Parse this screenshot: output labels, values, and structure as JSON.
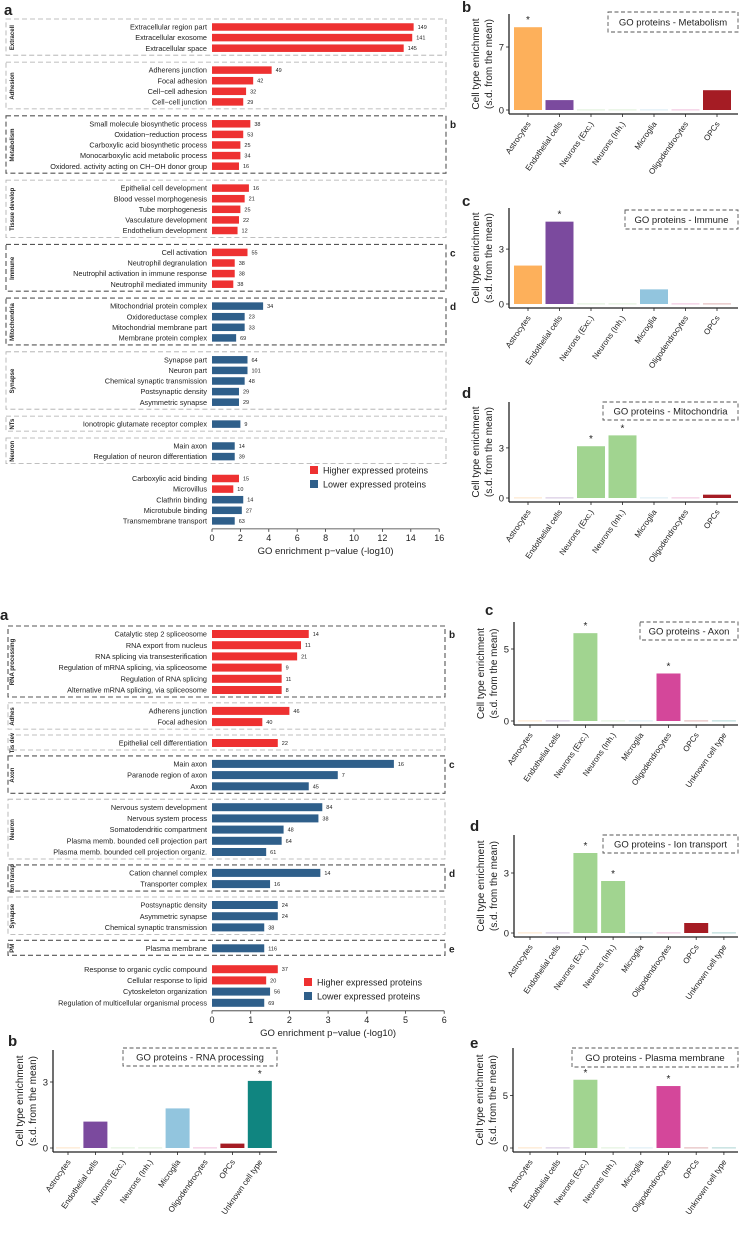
{
  "colors": {
    "higher": "#EE3131",
    "lower": "#2F5F8A",
    "Astrocytes": "#FDB05B",
    "Endothelial cells": "#7B4A9E",
    "Neurons (Exc.)": "#A1D490",
    "Neurons (Inh.)": "#A1D490",
    "Microglia": "#92C5DE",
    "Oligodendrocytes": "#D4479A",
    "OPCs": "#A51C24",
    "Unknown cell type": "#108580"
  },
  "chart_data": [
    {
      "id": "top-a",
      "type": "bar",
      "orientation": "horizontal",
      "panel": "a",
      "xlabel": "GO enrichment p−value (-log10)",
      "xlim": [
        0,
        16
      ],
      "xticks": [
        0,
        2,
        4,
        6,
        8,
        10,
        12,
        14,
        16
      ],
      "legend": [
        "Higher expressed proteins",
        "Lower expressed proteins"
      ],
      "legend_position": "bottom-right",
      "groups": [
        {
          "label": "Extracell",
          "ref": "",
          "items": [
            {
              "label": "Extracellular region part",
              "value": 14.2,
              "count": "149",
              "dir": "higher"
            },
            {
              "label": "Extracellular exosome",
              "value": 14.1,
              "count": "141",
              "dir": "higher"
            },
            {
              "label": "Extracellular space",
              "value": 13.5,
              "count": "145",
              "dir": "higher"
            }
          ]
        },
        {
          "label": "Adhesion",
          "ref": "",
          "items": [
            {
              "label": "Adherens junction",
              "value": 4.2,
              "count": "49",
              "dir": "higher"
            },
            {
              "label": "Focal adhesion",
              "value": 2.9,
              "count": "42",
              "dir": "higher"
            },
            {
              "label": "Cell−cell adhesion",
              "value": 2.4,
              "count": "32",
              "dir": "higher"
            },
            {
              "label": "Cell−cell junction",
              "value": 2.2,
              "count": "29",
              "dir": "higher"
            }
          ]
        },
        {
          "label": "Metabolism",
          "ref": "b",
          "items": [
            {
              "label": "Small molecule biosynthetic process",
              "value": 2.7,
              "count": "38",
              "dir": "higher"
            },
            {
              "label": "Oxidation−reduction process",
              "value": 2.2,
              "count": "53",
              "dir": "higher"
            },
            {
              "label": "Carboxylic acid biosynthetic process",
              "value": 2.0,
              "count": "25",
              "dir": "higher"
            },
            {
              "label": "Monocarboxylic acid metabolic process",
              "value": 2.0,
              "count": "34",
              "dir": "higher"
            },
            {
              "label": "Oxidored. activity acting on CH−OH donor group",
              "value": 1.9,
              "count": "16",
              "dir": "higher"
            }
          ]
        },
        {
          "label": "Tissue develop",
          "ref": "",
          "items": [
            {
              "label": "Epithelial cell development",
              "value": 2.6,
              "count": "16",
              "dir": "higher"
            },
            {
              "label": "Blood vessel morphogenesis",
              "value": 2.3,
              "count": "21",
              "dir": "higher"
            },
            {
              "label": "Tube morphogenesis",
              "value": 2.0,
              "count": "25",
              "dir": "higher"
            },
            {
              "label": "Vasculature development",
              "value": 1.9,
              "count": "22",
              "dir": "higher"
            },
            {
              "label": "Endothelium development",
              "value": 1.8,
              "count": "12",
              "dir": "higher"
            }
          ]
        },
        {
          "label": "Immune",
          "ref": "c",
          "items": [
            {
              "label": "Cell activation",
              "value": 2.5,
              "count": "55",
              "dir": "higher"
            },
            {
              "label": "Neutrophil degranulation",
              "value": 1.6,
              "count": "38",
              "dir": "higher"
            },
            {
              "label": "Neutrophil activation in immune response",
              "value": 1.6,
              "count": "38",
              "dir": "higher"
            },
            {
              "label": "Neutrophil mediated immunity",
              "value": 1.5,
              "count": "38",
              "dir": "higher"
            }
          ]
        },
        {
          "label": "Mitochondria",
          "ref": "d",
          "items": [
            {
              "label": "Mitochondrial protein complex",
              "value": 3.6,
              "count": "34",
              "dir": "lower"
            },
            {
              "label": "Oxidoreductase complex",
              "value": 2.3,
              "count": "23",
              "dir": "lower"
            },
            {
              "label": "Mitochondrial membrane part",
              "value": 2.3,
              "count": "33",
              "dir": "lower"
            },
            {
              "label": "Membrane protein complex",
              "value": 1.7,
              "count": "69",
              "dir": "lower"
            }
          ]
        },
        {
          "label": "Synapse",
          "ref": "",
          "items": [
            {
              "label": "Synapse part",
              "value": 2.5,
              "count": "64",
              "dir": "lower"
            },
            {
              "label": "Neuron part",
              "value": 2.5,
              "count": "101",
              "dir": "lower"
            },
            {
              "label": "Chemical synaptic transmission",
              "value": 2.3,
              "count": "48",
              "dir": "lower"
            },
            {
              "label": "Postsynaptic density",
              "value": 1.9,
              "count": "29",
              "dir": "lower"
            },
            {
              "label": "Asymmetric synapse",
              "value": 1.9,
              "count": "29",
              "dir": "lower"
            }
          ]
        },
        {
          "label": "NTs",
          "ref": "",
          "items": [
            {
              "label": "Ionotropic glutamate receptor complex",
              "value": 2.0,
              "count": "9",
              "dir": "lower"
            }
          ]
        },
        {
          "label": "Neuron",
          "ref": "",
          "items": [
            {
              "label": "Main axon",
              "value": 1.6,
              "count": "14",
              "dir": "lower"
            },
            {
              "label": "Regulation of neuron differentiation",
              "value": 1.6,
              "count": "39",
              "dir": "lower"
            }
          ]
        },
        {
          "label": "",
          "ref": "",
          "items": [
            {
              "label": "Carboxylic acid binding",
              "value": 1.9,
              "count": "15",
              "dir": "higher"
            },
            {
              "label": "Microvillus",
              "value": 1.5,
              "count": "10",
              "dir": "higher"
            },
            {
              "label": "Clathrin binding",
              "value": 2.2,
              "count": "14",
              "dir": "lower"
            },
            {
              "label": "Microtubule binding",
              "value": 2.1,
              "count": "27",
              "dir": "lower"
            },
            {
              "label": "Transmembrane transport",
              "value": 1.6,
              "count": "63",
              "dir": "lower"
            }
          ]
        }
      ]
    },
    {
      "id": "bottom-a",
      "type": "bar",
      "orientation": "horizontal",
      "panel": "a",
      "xlabel": "GO enrichment p−value (-log10)",
      "xlim": [
        0,
        6
      ],
      "xticks": [
        0,
        1,
        2,
        3,
        4,
        5,
        6
      ],
      "legend": [
        "Higher expressed proteins",
        "Lower expressed proteins"
      ],
      "legend_position": "bottom-right",
      "groups": [
        {
          "label": "RNA processing",
          "ref": "b",
          "items": [
            {
              "label": "Catalytic step 2 spliceosome",
              "value": 2.5,
              "count": "14",
              "dir": "higher"
            },
            {
              "label": "RNA export from nucleus",
              "value": 2.3,
              "count": "11",
              "dir": "higher"
            },
            {
              "label": "RNA splicing via transesterification",
              "value": 2.2,
              "count": "21",
              "dir": "higher"
            },
            {
              "label": "Regulation of mRNA splicing, via spliceosome",
              "value": 1.8,
              "count": "9",
              "dir": "higher"
            },
            {
              "label": "Regulation of RNA splicing",
              "value": 1.8,
              "count": "11",
              "dir": "higher"
            },
            {
              "label": "Alternative mRNA splicing, via spliceosome",
              "value": 1.8,
              "count": "8",
              "dir": "higher"
            }
          ]
        },
        {
          "label": "Adhes",
          "ref": "",
          "items": [
            {
              "label": "Adherens junction",
              "value": 2.0,
              "count": "46",
              "dir": "higher"
            },
            {
              "label": "Focal adhesion",
              "value": 1.3,
              "count": "40",
              "dir": "higher"
            }
          ]
        },
        {
          "label": "Tis dev",
          "ref": "",
          "items": [
            {
              "label": "Epithelial cell differentiation",
              "value": 1.7,
              "count": "22",
              "dir": "higher"
            }
          ]
        },
        {
          "label": "Axon",
          "ref": "c",
          "items": [
            {
              "label": "Main axon",
              "value": 4.7,
              "count": "16",
              "dir": "lower"
            },
            {
              "label": "Paranode region of axon",
              "value": 3.25,
              "count": "7",
              "dir": "lower"
            },
            {
              "label": "Axon",
              "value": 2.5,
              "count": "45",
              "dir": "lower"
            }
          ]
        },
        {
          "label": "Neuron",
          "ref": "",
          "items": [
            {
              "label": "Nervous system development",
              "value": 2.85,
              "count": "84",
              "dir": "lower"
            },
            {
              "label": "Nervous system process",
              "value": 2.75,
              "count": "38",
              "dir": "lower"
            },
            {
              "label": "Somatodendritic compartment",
              "value": 1.85,
              "count": "48",
              "dir": "lower"
            },
            {
              "label": "Plasma memb. bounded cell projection part",
              "value": 1.8,
              "count": "64",
              "dir": "lower"
            },
            {
              "label": "Plasma memb. bounded cell projection organiz.",
              "value": 1.4,
              "count": "61",
              "dir": "lower"
            }
          ]
        },
        {
          "label": "Ion transp",
          "ref": "d",
          "items": [
            {
              "label": "Cation channel complex",
              "value": 2.8,
              "count": "14",
              "dir": "lower"
            },
            {
              "label": "Transporter complex",
              "value": 1.5,
              "count": "16",
              "dir": "lower"
            }
          ]
        },
        {
          "label": "Synapse",
          "ref": "",
          "items": [
            {
              "label": "Postsynaptic density",
              "value": 1.7,
              "count": "24",
              "dir": "lower"
            },
            {
              "label": "Asymmetric synapse",
              "value": 1.7,
              "count": "24",
              "dir": "lower"
            },
            {
              "label": "Chemical synaptic transmission",
              "value": 1.35,
              "count": "38",
              "dir": "lower"
            }
          ]
        },
        {
          "label": "PM",
          "ref": "e",
          "items": [
            {
              "label": "Plasma membrane",
              "value": 1.35,
              "count": "116",
              "dir": "lower"
            }
          ]
        },
        {
          "label": "",
          "ref": "",
          "items": [
            {
              "label": "Response to organic cyclic compound",
              "value": 1.7,
              "count": "37",
              "dir": "higher"
            },
            {
              "label": "Cellular response to lipid",
              "value": 1.4,
              "count": "20",
              "dir": "higher"
            },
            {
              "label": "Cytoskeleton organization",
              "value": 1.5,
              "count": "56",
              "dir": "lower"
            },
            {
              "label": "Regulation of multicellular organismal process",
              "value": 1.35,
              "count": "69",
              "dir": "lower"
            }
          ]
        }
      ]
    },
    {
      "id": "metab",
      "type": "bar",
      "panel": "b",
      "title": "GO proteins - Metabolism",
      "ylabel": [
        "Cell type enrichment",
        "(s.d. from the mean)"
      ],
      "yticks": [
        0,
        7
      ],
      "categories": [
        "Astrocytes",
        "Endothelial cells",
        "Neurons (Exc.)",
        "Neurons (Inh.)",
        "Microglia",
        "Oligodendrocytes",
        "OPCs"
      ],
      "values": [
        9.2,
        1.1,
        0,
        0,
        0,
        0,
        2.2
      ],
      "significant": [
        "Astrocytes"
      ]
    },
    {
      "id": "immune",
      "type": "bar",
      "panel": "c",
      "title": "GO proteins - Immune",
      "ylabel": [
        "Cell type enrichment",
        "(s.d. from the mean)"
      ],
      "yticks": [
        0,
        3
      ],
      "categories": [
        "Astrocytes",
        "Endothelial cells",
        "Neurons (Exc.)",
        "Neurons (Inh.)",
        "Microglia",
        "Oligodendrocytes",
        "OPCs"
      ],
      "values": [
        2.1,
        4.5,
        0,
        0,
        0.8,
        0,
        0
      ],
      "significant": [
        "Endothelial cells"
      ]
    },
    {
      "id": "mito",
      "type": "bar",
      "panel": "d",
      "title": "GO proteins - Mitochondria",
      "ylabel": [
        "Cell type enrichment",
        "(s.d. from the mean)"
      ],
      "yticks": [
        0,
        3
      ],
      "categories": [
        "Astrocytes",
        "Endothelial cells",
        "Neurons (Exc.)",
        "Neurons (Inh.)",
        "Microglia",
        "Oligodendrocytes",
        "OPCs"
      ],
      "values": [
        0,
        0,
        3.1,
        3.75,
        0,
        0,
        0.2
      ],
      "significant": [
        "Neurons (Exc.)",
        "Neurons (Inh.)"
      ]
    },
    {
      "id": "axon",
      "type": "bar",
      "panel": "c",
      "title": "GO proteins - Axon",
      "ylabel": [
        "Cell type enrichment",
        "(s.d. from the mean)"
      ],
      "yticks": [
        0,
        5
      ],
      "categories": [
        "Astrocytes",
        "Endothelial cells",
        "Neurons (Exc.)",
        "Neurons (Inh.)",
        "Microglia",
        "Oligodendrocytes",
        "OPCs",
        "Unknown cell type"
      ],
      "values": [
        0,
        0,
        6.1,
        0,
        0,
        3.3,
        0,
        0
      ],
      "significant": [
        "Neurons (Exc.)",
        "Oligodendrocytes"
      ]
    },
    {
      "id": "ion",
      "type": "bar",
      "panel": "d",
      "title": "GO proteins - Ion transport",
      "ylabel": [
        "Cell type enrichment",
        "(s.d. from the mean)"
      ],
      "yticks": [
        0,
        3
      ],
      "categories": [
        "Astrocytes",
        "Endothelial cells",
        "Neurons (Exc.)",
        "Neurons (Inh.)",
        "Microglia",
        "Oligodendrocytes",
        "OPCs",
        "Unknown cell type"
      ],
      "values": [
        0,
        0,
        4.0,
        2.6,
        0,
        0,
        0.5,
        0
      ],
      "significant": [
        "Neurons (Exc.)",
        "Neurons (Inh.)"
      ]
    },
    {
      "id": "pm",
      "type": "bar",
      "panel": "e",
      "title": "GO proteins - Plasma membrane",
      "ylabel": [
        "Cell type enrichment",
        "(s.d. from the mean)"
      ],
      "yticks": [
        0,
        5
      ],
      "categories": [
        "Astrocytes",
        "Endothelial cells",
        "Neurons (Exc.)",
        "Neurons (Inh.)",
        "Microglia",
        "Oligodendrocytes",
        "OPCs",
        "Unknown cell type"
      ],
      "values": [
        0,
        0,
        6.5,
        0,
        0,
        5.9,
        0,
        0
      ],
      "significant": [
        "Neurons (Exc.)",
        "Oligodendrocytes"
      ]
    },
    {
      "id": "rna",
      "type": "bar",
      "panel": "b",
      "title": "GO proteins - RNA processing",
      "ylabel": [
        "Cell type enrichment",
        "(s.d. from the mean)"
      ],
      "yticks": [
        0,
        3
      ],
      "categories": [
        "Astrocytes",
        "Endothelial cells",
        "Neurons (Exc.)",
        "Neurons (Inh.)",
        "Microglia",
        "Oligodendrocytes",
        "OPCs",
        "Unknown cell type"
      ],
      "values": [
        0,
        1.2,
        0,
        0,
        1.8,
        0,
        0.2,
        3.05
      ],
      "significant": [
        "Unknown cell type"
      ]
    }
  ]
}
